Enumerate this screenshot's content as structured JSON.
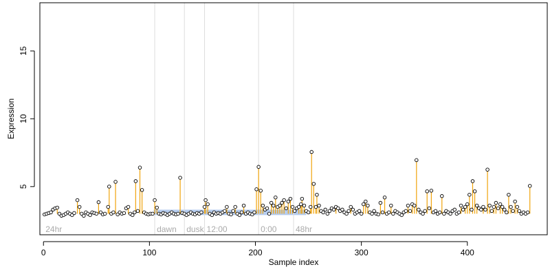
{
  "chart_data": {
    "type": "scatter",
    "xlabel": "Sample index",
    "ylabel": "Expression",
    "xlim": [
      -3.4,
      475.4
    ],
    "ylim": [
      1.45,
      18.55
    ],
    "x_ticks": [
      0,
      100,
      200,
      300,
      400
    ],
    "y_ticks": [
      5,
      10,
      15
    ],
    "grid": false,
    "baseline": 3.0,
    "phase_markers": [
      {
        "x": 105,
        "label": "dawn"
      },
      {
        "x": 133,
        "label": "dusk"
      },
      {
        "x": 152,
        "label": "12:00"
      },
      {
        "x": 203,
        "label": "0:00"
      },
      {
        "x": 236,
        "label": "48hr"
      }
    ],
    "corner_label": "24hr",
    "highlight_band": {
      "x_start": 104,
      "x_end": 248,
      "y_low": 2.9,
      "y_high": 3.3
    },
    "colors": {
      "stem": "#f0a30a",
      "band": "#a9c4ec",
      "point_edge": "#000000",
      "point_fill": "#ffffff",
      "phase_line": "#dddddd",
      "phase_label": "#aaaaaa"
    },
    "points": [
      [
        1,
        2.95
      ],
      [
        3,
        3.0
      ],
      [
        5,
        3.05
      ],
      [
        7,
        3.1
      ],
      [
        9,
        3.3
      ],
      [
        11,
        3.4
      ],
      [
        13,
        3.45
      ],
      [
        15,
        3.0
      ],
      [
        17,
        2.85
      ],
      [
        19,
        2.9
      ],
      [
        21,
        3.0
      ],
      [
        23,
        3.1
      ],
      [
        25,
        3.0
      ],
      [
        27,
        2.9
      ],
      [
        29,
        3.05
      ],
      [
        32,
        4.0
      ],
      [
        34,
        3.5
      ],
      [
        36,
        3.0
      ],
      [
        38,
        2.85
      ],
      [
        40,
        3.1
      ],
      [
        42,
        3.0
      ],
      [
        44,
        2.9
      ],
      [
        46,
        3.1
      ],
      [
        48,
        3.05
      ],
      [
        50,
        3.0
      ],
      [
        52,
        3.85
      ],
      [
        54,
        3.1
      ],
      [
        56,
        2.95
      ],
      [
        58,
        3.0
      ],
      [
        61,
        3.5
      ],
      [
        62,
        5.0
      ],
      [
        64,
        3.0
      ],
      [
        66,
        3.1
      ],
      [
        68,
        5.35
      ],
      [
        70,
        2.95
      ],
      [
        72,
        3.1
      ],
      [
        74,
        3.0
      ],
      [
        76,
        3.05
      ],
      [
        78,
        3.4
      ],
      [
        80,
        3.5
      ],
      [
        82,
        3.0
      ],
      [
        84,
        2.9
      ],
      [
        86,
        3.1
      ],
      [
        87,
        5.4
      ],
      [
        89,
        3.2
      ],
      [
        91,
        6.4
      ],
      [
        93,
        4.75
      ],
      [
        95,
        3.1
      ],
      [
        97,
        3.0
      ],
      [
        99,
        2.95
      ],
      [
        101,
        3.0
      ],
      [
        103,
        3.0
      ],
      [
        105,
        4.0
      ],
      [
        107,
        3.45
      ],
      [
        109,
        3.0
      ],
      [
        111,
        2.95
      ],
      [
        113,
        3.05
      ],
      [
        115,
        3.0
      ],
      [
        117,
        2.9
      ],
      [
        119,
        3.0
      ],
      [
        121,
        3.1
      ],
      [
        123,
        3.0
      ],
      [
        125,
        2.95
      ],
      [
        127,
        3.0
      ],
      [
        129,
        5.65
      ],
      [
        131,
        3.05
      ],
      [
        133,
        3.0
      ],
      [
        135,
        2.9
      ],
      [
        137,
        3.0
      ],
      [
        139,
        3.1
      ],
      [
        141,
        3.0
      ],
      [
        143,
        2.95
      ],
      [
        145,
        3.05
      ],
      [
        147,
        3.0
      ],
      [
        149,
        3.1
      ],
      [
        152,
        3.5
      ],
      [
        153,
        4.0
      ],
      [
        155,
        3.7
      ],
      [
        157,
        3.0
      ],
      [
        159,
        2.9
      ],
      [
        161,
        3.1
      ],
      [
        163,
        3.0
      ],
      [
        165,
        3.05
      ],
      [
        167,
        3.0
      ],
      [
        169,
        3.1
      ],
      [
        171,
        3.2
      ],
      [
        173,
        3.5
      ],
      [
        175,
        3.0
      ],
      [
        177,
        2.95
      ],
      [
        179,
        3.2
      ],
      [
        181,
        3.5
      ],
      [
        183,
        3.0
      ],
      [
        185,
        2.9
      ],
      [
        187,
        3.1
      ],
      [
        189,
        3.6
      ],
      [
        191,
        3.0
      ],
      [
        193,
        3.1
      ],
      [
        195,
        3.0
      ],
      [
        197,
        2.95
      ],
      [
        199,
        3.1
      ],
      [
        201,
        4.8
      ],
      [
        203,
        6.45
      ],
      [
        205,
        4.7
      ],
      [
        207,
        3.6
      ],
      [
        209,
        3.3
      ],
      [
        211,
        3.4
      ],
      [
        213,
        3.0
      ],
      [
        215,
        3.8
      ],
      [
        217,
        3.6
      ],
      [
        219,
        4.2
      ],
      [
        221,
        3.5
      ],
      [
        223,
        3.6
      ],
      [
        225,
        3.8
      ],
      [
        227,
        4.0
      ],
      [
        229,
        3.4
      ],
      [
        231,
        3.9
      ],
      [
        233,
        4.1
      ],
      [
        235,
        3.5
      ],
      [
        237,
        3.2
      ],
      [
        239,
        3.4
      ],
      [
        241,
        3.5
      ],
      [
        243,
        3.7
      ],
      [
        244,
        4.1
      ],
      [
        246,
        3.6
      ],
      [
        248,
        3.2
      ],
      [
        250,
        3.1
      ],
      [
        252,
        3.5
      ],
      [
        253,
        7.55
      ],
      [
        255,
        5.2
      ],
      [
        257,
        3.5
      ],
      [
        258,
        4.4
      ],
      [
        260,
        3.6
      ],
      [
        262,
        3.2
      ],
      [
        264,
        3.1
      ],
      [
        266,
        3.3
      ],
      [
        268,
        3.0
      ],
      [
        270,
        3.2
      ],
      [
        272,
        3.4
      ],
      [
        274,
        3.3
      ],
      [
        276,
        3.5
      ],
      [
        278,
        3.4
      ],
      [
        280,
        3.2
      ],
      [
        282,
        3.3
      ],
      [
        284,
        3.1
      ],
      [
        286,
        3.0
      ],
      [
        288,
        3.2
      ],
      [
        290,
        3.5
      ],
      [
        292,
        3.3
      ],
      [
        294,
        3.0
      ],
      [
        296,
        3.1
      ],
      [
        298,
        3.2
      ],
      [
        300,
        3.0
      ],
      [
        302,
        3.7
      ],
      [
        304,
        3.9
      ],
      [
        306,
        3.6
      ],
      [
        308,
        3.1
      ],
      [
        310,
        3.0
      ],
      [
        312,
        3.2
      ],
      [
        314,
        3.0
      ],
      [
        316,
        2.95
      ],
      [
        318,
        3.8
      ],
      [
        320,
        3.1
      ],
      [
        322,
        4.2
      ],
      [
        324,
        3.0
      ],
      [
        326,
        3.1
      ],
      [
        328,
        3.6
      ],
      [
        330,
        3.0
      ],
      [
        332,
        3.2
      ],
      [
        334,
        3.1
      ],
      [
        336,
        3.0
      ],
      [
        338,
        2.9
      ],
      [
        340,
        3.1
      ],
      [
        342,
        3.2
      ],
      [
        344,
        3.6
      ],
      [
        346,
        3.2
      ],
      [
        348,
        3.7
      ],
      [
        350,
        3.6
      ],
      [
        352,
        6.95
      ],
      [
        354,
        3.3
      ],
      [
        356,
        3.1
      ],
      [
        358,
        3.0
      ],
      [
        360,
        3.2
      ],
      [
        362,
        4.65
      ],
      [
        364,
        3.4
      ],
      [
        366,
        4.7
      ],
      [
        368,
        3.1
      ],
      [
        370,
        3.2
      ],
      [
        372,
        3.0
      ],
      [
        374,
        3.1
      ],
      [
        376,
        4.3
      ],
      [
        378,
        3.0
      ],
      [
        380,
        3.2
      ],
      [
        382,
        3.1
      ],
      [
        384,
        3.0
      ],
      [
        386,
        3.2
      ],
      [
        388,
        3.3
      ],
      [
        390,
        3.0
      ],
      [
        392,
        3.1
      ],
      [
        394,
        3.6
      ],
      [
        396,
        3.3
      ],
      [
        398,
        3.5
      ],
      [
        400,
        3.7
      ],
      [
        402,
        4.4
      ],
      [
        404,
        3.3
      ],
      [
        405,
        5.4
      ],
      [
        407,
        4.65
      ],
      [
        409,
        3.6
      ],
      [
        411,
        3.4
      ],
      [
        413,
        3.3
      ],
      [
        415,
        3.5
      ],
      [
        417,
        3.3
      ],
      [
        419,
        6.25
      ],
      [
        421,
        3.6
      ],
      [
        423,
        3.2
      ],
      [
        425,
        3.5
      ],
      [
        427,
        3.8
      ],
      [
        429,
        3.4
      ],
      [
        431,
        3.7
      ],
      [
        433,
        3.5
      ],
      [
        435,
        3.3
      ],
      [
        437,
        3.1
      ],
      [
        439,
        4.4
      ],
      [
        441,
        3.5
      ],
      [
        443,
        3.2
      ],
      [
        445,
        3.9
      ],
      [
        447,
        3.5
      ],
      [
        449,
        3.2
      ],
      [
        451,
        3.0
      ],
      [
        453,
        3.1
      ],
      [
        455,
        3.0
      ],
      [
        457,
        3.1
      ],
      [
        459,
        5.05
      ]
    ]
  }
}
